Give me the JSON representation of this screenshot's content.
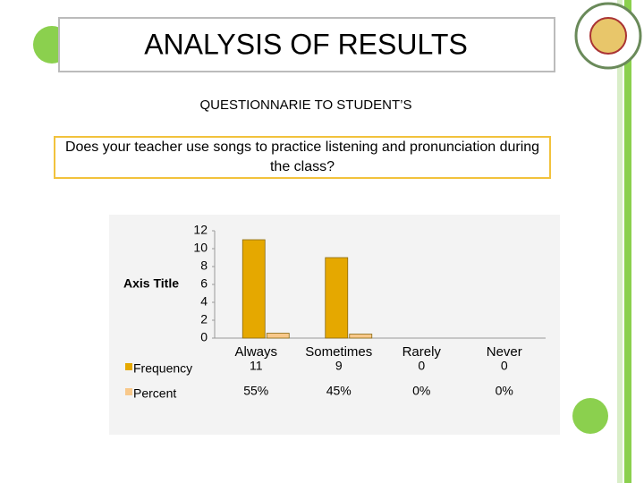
{
  "slide": {
    "title": "ANALYSIS OF RESULTS",
    "subtitle": "QUESTIONNARIE TO STUDENT’S",
    "question": "Does your teacher use songs to practice listening and pronunciation during the class?"
  },
  "chart_data": {
    "type": "bar",
    "y_axis_title": "Axis Title",
    "categories": [
      "Always",
      "Sometimes",
      "Rarely",
      "Never"
    ],
    "series": [
      {
        "name": "Frequency",
        "color": "#e5a800",
        "values": [
          11,
          9,
          0,
          0
        ]
      },
      {
        "name": "Percent",
        "color": "#f8c88a",
        "values": [
          0.55,
          0.45,
          0,
          0
        ],
        "value_labels": [
          "55%",
          "45%",
          "0%",
          "0%"
        ]
      }
    ],
    "ylim": [
      0,
      12
    ],
    "yticks": [
      0,
      2,
      4,
      6,
      8,
      10,
      12
    ],
    "grid": false
  }
}
